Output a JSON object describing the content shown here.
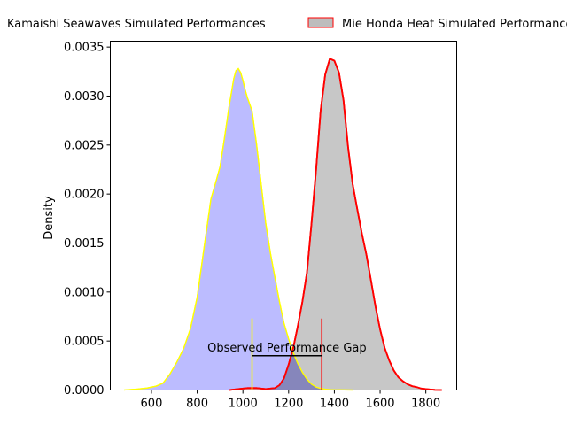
{
  "chart_data": {
    "type": "area",
    "title": "",
    "xlabel": "",
    "ylabel": "Density",
    "xlim": [
      420,
      1935
    ],
    "ylim": [
      0,
      0.00356
    ],
    "x_ticks": [
      600,
      800,
      1000,
      1200,
      1400,
      1600,
      1800
    ],
    "y_ticks": [
      0.0,
      0.0005,
      0.001,
      0.0015,
      0.002,
      0.0025,
      0.003,
      0.0035
    ],
    "y_tick_labels": [
      "0.0000",
      "0.0005",
      "0.0010",
      "0.0015",
      "0.0020",
      "0.0025",
      "0.0030",
      "0.0035"
    ],
    "grid": false,
    "legend_position": "top",
    "series": [
      {
        "name": "Kamaishi Seawaves Simulated Performances",
        "fill_color": "#bcbcff",
        "line_color": "#ffff00",
        "x": [
          480,
          540,
          580,
          620,
          650,
          680,
          710,
          740,
          770,
          800,
          830,
          860,
          880,
          900,
          920,
          940,
          960,
          970,
          980,
          990,
          1000,
          1010,
          1020,
          1040,
          1060,
          1080,
          1100,
          1120,
          1140,
          1160,
          1180,
          1200,
          1220,
          1240,
          1260,
          1280,
          1300,
          1320,
          1340,
          1360,
          1380,
          1400,
          1440,
          1480
        ],
        "y": [
          0.0,
          1e-05,
          2e-05,
          4e-05,
          7e-05,
          0.00016,
          0.00028,
          0.00042,
          0.00062,
          0.00095,
          0.00145,
          0.00195,
          0.00211,
          0.00228,
          0.00258,
          0.0029,
          0.00318,
          0.00326,
          0.00328,
          0.00324,
          0.00316,
          0.00306,
          0.00298,
          0.00285,
          0.0025,
          0.0021,
          0.0017,
          0.0014,
          0.00115,
          0.0009,
          0.00068,
          0.00052,
          0.00038,
          0.00027,
          0.00018,
          0.00011,
          6e-05,
          3e-05,
          1.5e-05,
          8e-06,
          4e-06,
          2e-06,
          1e-06,
          0.0
        ]
      },
      {
        "name": "Mie Honda Heat Simulated Performances",
        "fill_color": "#bdbdbd",
        "line_color": "#ff0000",
        "x": [
          940,
          980,
          1020,
          1060,
          1100,
          1140,
          1160,
          1180,
          1200,
          1220,
          1240,
          1260,
          1280,
          1300,
          1320,
          1340,
          1360,
          1380,
          1400,
          1420,
          1440,
          1460,
          1480,
          1500,
          1520,
          1540,
          1560,
          1580,
          1600,
          1620,
          1640,
          1660,
          1680,
          1700,
          1720,
          1740,
          1760,
          1780,
          1800,
          1820,
          1840,
          1870
        ],
        "y": [
          0.0,
          1e-05,
          2e-05,
          2e-05,
          1e-05,
          2e-05,
          5e-05,
          0.00012,
          0.00026,
          0.00043,
          0.00065,
          0.0009,
          0.0012,
          0.0017,
          0.00225,
          0.00285,
          0.00322,
          0.00338,
          0.00336,
          0.00324,
          0.00296,
          0.00248,
          0.0021,
          0.00185,
          0.0016,
          0.00138,
          0.00112,
          0.00085,
          0.00062,
          0.00043,
          0.0003,
          0.0002,
          0.00013,
          9e-05,
          6e-05,
          4e-05,
          3e-05,
          1.5e-05,
          1e-05,
          5e-06,
          2e-06,
          0.0
        ]
      }
    ],
    "markers": [
      {
        "x": 1040,
        "y_top": 0.00073,
        "color": "#ffff00"
      },
      {
        "x": 1345,
        "y_top": 0.00073,
        "color": "#ff0000"
      }
    ],
    "annotation": {
      "text": "Observed Performance Gap",
      "x_start": 1040,
      "x_end": 1345,
      "y": 0.00035
    }
  }
}
